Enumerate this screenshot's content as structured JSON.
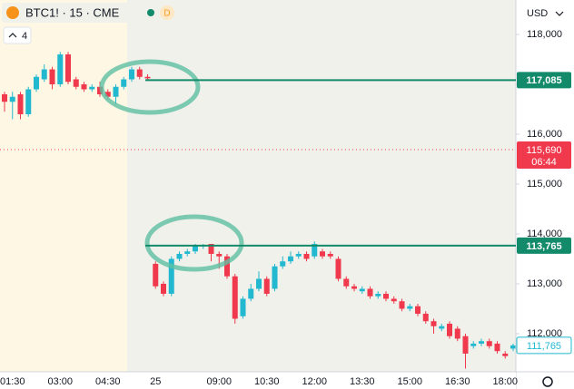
{
  "chart_data": {
    "type": "candlestick",
    "title": "BTC1! · 15 · CME",
    "badge": "D",
    "indicator_count": "4",
    "currency": "USD",
    "up_color": "#22b8cf",
    "down_color": "#f0394d",
    "categories": [
      null,
      "01:30",
      null,
      null,
      null,
      null,
      null,
      "03:00",
      null,
      null,
      null,
      null,
      null,
      "04:30",
      null,
      null,
      null,
      null,
      null,
      "25",
      null,
      null,
      null,
      null,
      null,
      null,
      null,
      "09:00",
      null,
      null,
      null,
      null,
      null,
      "10:30",
      null,
      null,
      null,
      null,
      null,
      "12:00",
      null,
      null,
      null,
      null,
      null,
      "13:30",
      null,
      null,
      null,
      null,
      null,
      "15:00",
      null,
      null,
      null,
      null,
      null,
      "16:30",
      null,
      null,
      null,
      null,
      null,
      "18:00",
      null
    ],
    "open": [
      116800,
      116650,
      116800,
      116400,
      116900,
      117100,
      117300,
      117000,
      117600,
      117100,
      117000,
      116900,
      116950,
      116850,
      116750,
      116950,
      117100,
      117300,
      117150,
      113400,
      113000,
      112800,
      113500,
      113600,
      113650,
      113750,
      113800,
      113600,
      113550,
      113150,
      112350,
      112700,
      112900,
      113100,
      112900,
      113350,
      113450,
      113550,
      113600,
      113550,
      113650,
      113600,
      113500,
      113100,
      112950,
      112850,
      112900,
      112750,
      112800,
      112700,
      112650,
      112500,
      112550,
      112400,
      112250,
      112100,
      112200,
      112100,
      111950,
      111750,
      111800,
      111850,
      111800,
      111600,
      111700
    ],
    "high": [
      116850,
      116850,
      116850,
      116950,
      117200,
      117400,
      117350,
      117650,
      117650,
      117150,
      117050,
      117000,
      117050,
      116900,
      117000,
      117150,
      117350,
      117350,
      117200,
      113450,
      113050,
      113550,
      113650,
      113700,
      113800,
      113800,
      113800,
      113650,
      113600,
      113200,
      112750,
      113000,
      113250,
      113150,
      113400,
      113550,
      113650,
      113650,
      113650,
      113850,
      113700,
      113650,
      113550,
      113150,
      113000,
      112950,
      112950,
      112850,
      112850,
      112750,
      112700,
      112600,
      112600,
      112450,
      112300,
      112200,
      112250,
      112150,
      112000,
      111850,
      111900,
      111900,
      111850,
      111650,
      111800
    ],
    "low": [
      116450,
      116300,
      116300,
      116350,
      116850,
      117050,
      116900,
      116950,
      117000,
      116900,
      116850,
      116850,
      116750,
      116700,
      116600,
      116900,
      117050,
      117100,
      117085,
      112900,
      112750,
      112750,
      113450,
      113550,
      113600,
      113700,
      113450,
      113300,
      113100,
      112200,
      112300,
      112650,
      112850,
      112750,
      112850,
      113300,
      113400,
      113500,
      113450,
      113500,
      113500,
      113500,
      113050,
      112900,
      112850,
      112800,
      112700,
      112700,
      112650,
      112600,
      112450,
      112450,
      112350,
      112200,
      112000,
      112050,
      111900,
      111850,
      111300,
      111700,
      111750,
      111700,
      111600,
      111500,
      111650
    ],
    "close": [
      116650,
      116750,
      116400,
      116900,
      117150,
      117300,
      117000,
      117600,
      117050,
      116950,
      116900,
      116950,
      116800,
      116750,
      116950,
      117100,
      117300,
      117150,
      117120,
      112950,
      112800,
      113500,
      113600,
      113650,
      113765,
      113770,
      113600,
      113550,
      113150,
      112300,
      112700,
      112900,
      113100,
      112800,
      113350,
      113450,
      113550,
      113600,
      113500,
      113800,
      113550,
      113550,
      113100,
      112950,
      112900,
      112900,
      112750,
      112800,
      112700,
      112650,
      112500,
      112550,
      112400,
      112250,
      112150,
      112150,
      111950,
      111900,
      111600,
      111800,
      111850,
      111750,
      111650,
      111550,
      111765
    ],
    "ylim": [
      111236,
      118691
    ],
    "yticks": [
      {
        "value": 112000,
        "label": "112,000"
      },
      {
        "value": 113000,
        "label": "113,000"
      },
      {
        "value": 114000,
        "label": "114,000"
      },
      {
        "value": 115000,
        "label": "115,000"
      },
      {
        "value": 116000,
        "label": "116,000"
      },
      {
        "value": 117000,
        "label": "117,000"
      },
      {
        "value": 118000,
        "label": "118,000"
      }
    ],
    "levels": [
      {
        "value": 117085,
        "label": "117,085",
        "color": "#138a6a"
      },
      {
        "value": 113765,
        "label": "113,765",
        "color": "#138a6a"
      }
    ],
    "current_price": {
      "value": 115690,
      "label": "115,690",
      "countdown": "06:44",
      "color": "#f0394d"
    },
    "last_price": {
      "value": 111765,
      "label": "111,765"
    }
  }
}
